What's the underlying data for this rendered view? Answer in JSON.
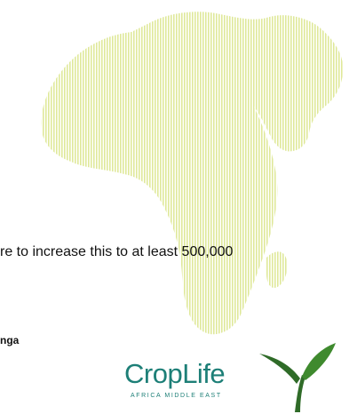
{
  "slide": {
    "body_text": "re to increase this to at least 500,000",
    "name_text": "nga"
  },
  "logo": {
    "wordmark": "CropLife",
    "tagline": "AFRICA MIDDLE EAST",
    "icon": "sprout-icon"
  },
  "colors": {
    "map_stripe": "#dfe89a",
    "logo_teal": "#1d7f77",
    "logo_green": "#2f6b28",
    "text": "#111111"
  }
}
